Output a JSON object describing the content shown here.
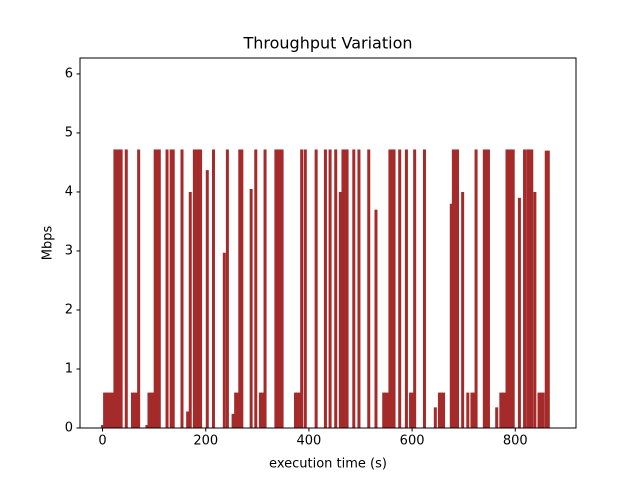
{
  "chart_data": {
    "type": "bar",
    "title": "Throughput Variation",
    "xlabel": "execution time (s)",
    "ylabel": "Mbps",
    "color": "#a52a2a",
    "x": [
      0,
      4,
      8,
      12,
      16,
      20,
      24,
      28,
      32,
      36,
      46,
      58,
      62,
      66,
      70,
      86,
      90,
      94,
      98,
      102,
      106,
      110,
      125,
      133,
      137,
      154,
      165,
      170,
      178,
      182,
      186,
      190,
      203,
      215,
      236,
      242,
      253,
      258,
      262,
      266,
      270,
      288,
      297,
      306,
      310,
      315,
      336,
      340,
      344,
      348,
      374,
      378,
      382,
      386,
      393,
      414,
      432,
      441,
      452,
      461,
      466,
      470,
      474,
      487,
      497,
      516,
      530,
      545,
      549,
      553,
      557,
      561,
      565,
      576,
      589,
      597,
      601,
      605,
      624,
      645,
      653,
      657,
      661,
      676,
      680,
      684,
      688,
      698,
      708,
      716,
      720,
      724,
      740,
      744,
      748,
      764,
      772,
      776,
      780,
      784,
      788,
      792,
      796,
      808,
      818,
      824,
      828,
      832,
      838,
      846,
      850,
      854,
      860,
      864
    ],
    "values": [
      0.05,
      0.6,
      0.6,
      0.6,
      0.6,
      0.6,
      4.72,
      4.72,
      4.72,
      4.72,
      4.72,
      0.6,
      0.6,
      0.6,
      4.72,
      0.05,
      0.6,
      0.6,
      0.6,
      4.72,
      4.72,
      4.72,
      4.72,
      4.72,
      4.72,
      4.72,
      0.28,
      4.0,
      4.72,
      4.72,
      4.72,
      4.72,
      4.37,
      4.72,
      2.97,
      4.72,
      0.24,
      0.6,
      0.6,
      4.72,
      4.72,
      4.05,
      4.72,
      0.6,
      0.6,
      4.72,
      4.72,
      4.72,
      4.72,
      4.72,
      0.6,
      0.6,
      0.6,
      4.72,
      4.72,
      4.72,
      4.72,
      4.72,
      4.72,
      4.0,
      4.72,
      4.72,
      4.72,
      4.72,
      4.72,
      4.72,
      3.7,
      0.6,
      0.6,
      0.6,
      4.72,
      4.72,
      4.72,
      4.72,
      4.72,
      0.6,
      0.6,
      4.72,
      4.72,
      0.35,
      0.6,
      0.6,
      0.6,
      3.8,
      4.72,
      4.72,
      4.72,
      4.0,
      0.6,
      0.6,
      0.6,
      4.72,
      4.72,
      4.72,
      4.72,
      0.35,
      0.6,
      0.6,
      0.6,
      4.72,
      4.72,
      4.72,
      4.72,
      3.9,
      4.72,
      4.72,
      4.72,
      4.72,
      4.0,
      0.6,
      0.6,
      0.6,
      4.7,
      4.7
    ],
    "xlim": [
      -43.7,
      917.7
    ],
    "xticks": [
      0,
      200,
      400,
      600,
      800
    ],
    "ylim": [
      0,
      6.27
    ],
    "yticks": [
      0,
      1,
      2,
      3,
      4,
      5,
      6
    ]
  }
}
